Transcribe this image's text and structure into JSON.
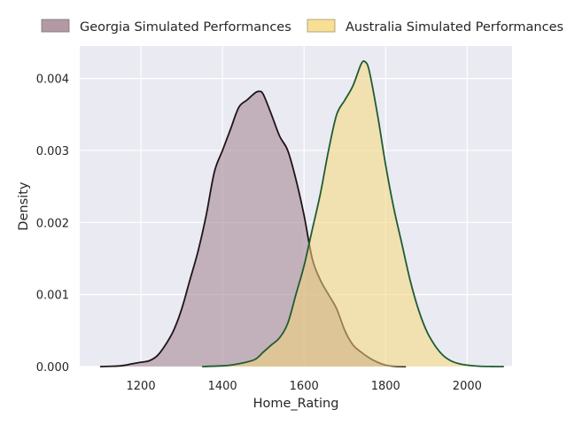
{
  "chart_data": {
    "type": "area",
    "title": "",
    "xlabel": "Home_Rating",
    "ylabel": "Density",
    "xlim": [
      1050,
      2110
    ],
    "ylim": [
      0,
      0.00445
    ],
    "grid": true,
    "legend_position": "top",
    "x_ticks": [
      1200,
      1400,
      1600,
      1800,
      2000
    ],
    "x_tick_labels": [
      "1200",
      "1400",
      "1600",
      "1800",
      "2000"
    ],
    "y_ticks": [
      0,
      0.001,
      0.002,
      0.003,
      0.004
    ],
    "y_tick_labels": [
      "0.000",
      "0.001",
      "0.002",
      "0.003",
      "0.004"
    ],
    "series": [
      {
        "name": "Georgia Simulated Performances",
        "fill_color": "#a07f8c",
        "line_color": "#1e1519",
        "x": [
          1100,
          1150,
          1180,
          1200,
          1220,
          1240,
          1260,
          1280,
          1300,
          1320,
          1340,
          1360,
          1380,
          1400,
          1420,
          1440,
          1460,
          1480,
          1490,
          1500,
          1520,
          1540,
          1560,
          1580,
          1600,
          1620,
          1640,
          1660,
          1680,
          1700,
          1720,
          1740,
          1760,
          1780,
          1800,
          1820,
          1850
        ],
        "y": [
          0.0,
          1e-05,
          4e-05,
          6e-05,
          8e-05,
          0.00015,
          0.0003,
          0.0005,
          0.0008,
          0.0012,
          0.0016,
          0.0021,
          0.0027,
          0.003,
          0.0033,
          0.0036,
          0.0037,
          0.0038,
          0.00382,
          0.00378,
          0.0035,
          0.0032,
          0.003,
          0.0026,
          0.0021,
          0.0015,
          0.0012,
          0.001,
          0.0008,
          0.0005,
          0.0003,
          0.0002,
          0.00012,
          6e-05,
          2e-05,
          5e-06,
          0.0
        ]
      },
      {
        "name": "Australia Simulated Performances",
        "fill_color": "#f5d77a",
        "line_color": "#1f5c33",
        "x": [
          1350,
          1400,
          1420,
          1450,
          1480,
          1500,
          1520,
          1540,
          1560,
          1580,
          1600,
          1620,
          1640,
          1660,
          1680,
          1700,
          1720,
          1740,
          1750,
          1760,
          1780,
          1800,
          1820,
          1840,
          1860,
          1880,
          1900,
          1920,
          1940,
          1960,
          1980,
          2000,
          2030,
          2060,
          2090
        ],
        "y": [
          0.0,
          1e-05,
          2e-05,
          5e-05,
          0.0001,
          0.0002,
          0.0003,
          0.0004,
          0.0006,
          0.001,
          0.0014,
          0.0019,
          0.0024,
          0.003,
          0.0035,
          0.0037,
          0.0039,
          0.0042,
          0.00423,
          0.0041,
          0.0035,
          0.0028,
          0.0022,
          0.0017,
          0.0012,
          0.0008,
          0.0005,
          0.0003,
          0.00016,
          8e-05,
          4e-05,
          2e-05,
          5e-06,
          1e-06,
          0.0
        ]
      }
    ]
  }
}
